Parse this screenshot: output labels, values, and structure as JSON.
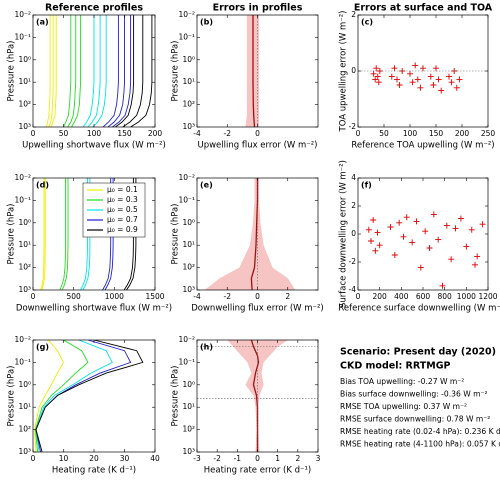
{
  "chart_data": [
    {
      "type": "line",
      "label": "(a)",
      "title": "Reference profiles",
      "xlabel": "Upwelling shortwave flux (W m⁻²)",
      "ylabel": "Pressure (hPa)",
      "xlim": [
        0,
        200
      ],
      "xticks": [
        0,
        50,
        100,
        150,
        200
      ],
      "ylog": true,
      "ylim": [
        1000,
        0.01
      ],
      "yticks": [
        {
          "value": 0.01,
          "label": "10⁻²"
        },
        {
          "value": 0.1,
          "label": "10⁻¹"
        },
        {
          "value": 1,
          "label": "10⁰"
        },
        {
          "value": 10,
          "label": "10¹"
        },
        {
          "value": 100,
          "label": "10²"
        },
        {
          "value": 1000,
          "label": "10³"
        }
      ],
      "pressure": [
        0.01,
        0.1,
        1,
        10,
        30,
        100,
        300,
        600,
        1000
      ],
      "series": [
        {
          "color": "#eeee00",
          "profiles": [
            [
              28,
              28,
              28,
              28,
              28,
              27,
              26,
              24,
              22
            ],
            [
              33,
              33,
              33,
              33,
              33,
              32,
              31,
              29,
              26
            ],
            [
              38,
              38,
              38,
              38,
              38,
              37,
              36,
              33,
              30
            ]
          ]
        },
        {
          "color": "#22dd22",
          "profiles": [
            [
              62,
              62,
              62,
              62,
              61,
              60,
              58,
              54,
              50
            ],
            [
              70,
              70,
              70,
              70,
              69,
              68,
              66,
              62,
              57
            ],
            [
              78,
              78,
              78,
              78,
              77,
              76,
              73,
              68,
              63
            ]
          ]
        },
        {
          "color": "#00e5e5",
          "profiles": [
            [
              100,
              100,
              100,
              100,
              99,
              97,
              94,
              88,
              82
            ],
            [
              110,
              110,
              110,
              110,
              109,
              107,
              104,
              97,
              90
            ],
            [
              120,
              120,
              120,
              120,
              119,
              117,
              113,
              106,
              98
            ]
          ]
        },
        {
          "color": "#1f1fd0",
          "profiles": [
            [
              140,
              140,
              140,
              140,
              139,
              137,
              133,
              124,
              115
            ],
            [
              150,
              150,
              150,
              150,
              149,
              147,
              142,
              133,
              123
            ],
            [
              160,
              160,
              160,
              160,
              159,
              156,
              151,
              141,
              130
            ]
          ]
        },
        {
          "color": "#000000",
          "profiles": [
            [
              165,
              165,
              165,
              165,
              164,
              161,
              156,
              146,
              135
            ],
            [
              180,
              180,
              180,
              180,
              179,
              176,
              170,
              159,
              147
            ],
            [
              195,
              195,
              195,
              195,
              194,
              191,
              185,
              173,
              160
            ]
          ]
        }
      ]
    },
    {
      "type": "area",
      "label": "(b)",
      "title": "Errors in profiles",
      "xlabel": "Upwelling flux error (W m⁻²)",
      "ylabel": "Pressure (hPa)",
      "xlim": [
        -4,
        4
      ],
      "xticks": [
        -4,
        -2,
        0
      ],
      "ylog": true,
      "ylim": [
        1000,
        0.01
      ],
      "yticks": [
        {
          "value": 0.01,
          "label": "10⁻²"
        },
        {
          "value": 0.1,
          "label": "10⁻¹"
        },
        {
          "value": 1,
          "label": "10⁰"
        },
        {
          "value": 10,
          "label": "10¹"
        },
        {
          "value": 100,
          "label": "10²"
        },
        {
          "value": 1000,
          "label": "10³"
        }
      ],
      "vline": 0,
      "band_color": "#f7c4c4",
      "color": "#a01010",
      "pressure": [
        0.01,
        0.1,
        1,
        10,
        100,
        300,
        1000
      ],
      "min": [
        -0.7,
        -0.7,
        -0.7,
        -0.7,
        -0.7,
        -0.7,
        -0.8
      ],
      "max": [
        0.1,
        0.1,
        0.1,
        0.1,
        0.1,
        0.1,
        0.1
      ],
      "mean": [
        -0.3,
        -0.3,
        -0.3,
        -0.3,
        -0.28,
        -0.25,
        -0.2
      ]
    },
    {
      "type": "scatter",
      "label": "(c)",
      "title": "Errors at surface and TOA",
      "xlabel": "Reference TOA upwelling (W m⁻²)",
      "ylabel": "TOA upwelling error (W m⁻²)",
      "xlim": [
        0,
        250
      ],
      "xticks": [
        0,
        50,
        100,
        150,
        200,
        250
      ],
      "ylim": [
        -2,
        2
      ],
      "yticks": [
        -2,
        0,
        2
      ],
      "hlines": [
        0
      ],
      "color": "#e00000",
      "x": [
        30,
        33,
        35,
        38,
        40,
        42,
        65,
        70,
        75,
        80,
        85,
        100,
        105,
        110,
        115,
        120,
        125,
        140,
        145,
        150,
        155,
        160,
        175,
        180,
        185,
        190,
        195
      ],
      "y": [
        -0.1,
        -0.3,
        0.1,
        -0.2,
        -0.4,
        0,
        -0.2,
        0.1,
        -0.3,
        -0.5,
        0,
        -0.1,
        -0.4,
        0.2,
        -0.3,
        -0.6,
        0.1,
        -0.2,
        -0.5,
        0.1,
        -0.3,
        -0.7,
        -0.2,
        -0.4,
        0,
        -0.6,
        -0.3
      ]
    },
    {
      "type": "line",
      "label": "(d)",
      "xlabel": "Downwelling shortwave flux (W m⁻²)",
      "ylabel": "Pressure (hPa)",
      "xlim": [
        0,
        1500
      ],
      "xticks": [
        0,
        500,
        1000,
        1500
      ],
      "ylog": true,
      "ylim": [
        1000,
        0.01
      ],
      "yticks": [
        {
          "value": 0.01,
          "label": "10⁻²"
        },
        {
          "value": 0.1,
          "label": "10⁻¹"
        },
        {
          "value": 1,
          "label": "10⁰"
        },
        {
          "value": 10,
          "label": "10¹"
        },
        {
          "value": 100,
          "label": "10²"
        },
        {
          "value": 1000,
          "label": "10³"
        }
      ],
      "legend": "upper right",
      "pressure": [
        0.01,
        0.1,
        1,
        10,
        30,
        100,
        300,
        600,
        1000
      ],
      "series": [
        {
          "name": "μ₀ = 0.1",
          "color": "#eeee00",
          "profiles": [
            [
              150,
              150,
              150,
              150,
              149,
              147,
              140,
              125,
              110
            ],
            [
              135,
              135,
              135,
              135,
              134,
              132,
              126,
              112,
              95
            ]
          ]
        },
        {
          "name": "μ₀ = 0.3",
          "color": "#22dd22",
          "profiles": [
            [
              430,
              430,
              430,
              430,
              428,
              424,
              410,
              385,
              360
            ],
            [
              400,
              400,
              400,
              400,
              398,
              394,
              380,
              355,
              330
            ]
          ]
        },
        {
          "name": "μ₀ = 0.5",
          "color": "#00e5e5",
          "profiles": [
            [
              700,
              700,
              700,
              700,
              698,
              692,
              675,
              645,
              615
            ],
            [
              670,
              670,
              670,
              670,
              668,
              662,
              645,
              615,
              585
            ]
          ]
        },
        {
          "name": "μ₀ = 0.7",
          "color": "#1f1fd0",
          "profiles": [
            [
              985,
              985,
              985,
              985,
              982,
              975,
              955,
              920,
              885
            ],
            [
              955,
              955,
              955,
              955,
              952,
              945,
              925,
              890,
              855
            ]
          ]
        },
        {
          "name": "μ₀ = 0.9",
          "color": "#000000",
          "profiles": [
            [
              1265,
              1265,
              1265,
              1265,
              1262,
              1253,
              1230,
              1190,
              1150
            ],
            [
              1235,
              1235,
              1235,
              1235,
              1232,
              1223,
              1200,
              1160,
              1120
            ]
          ]
        }
      ]
    },
    {
      "type": "area",
      "label": "(e)",
      "xlabel": "Downwelling flux error (W m⁻²)",
      "ylabel": "Pressure (hPa)",
      "xlim": [
        -4,
        4
      ],
      "xticks": [
        -4,
        -2,
        0,
        2
      ],
      "ylog": true,
      "ylim": [
        1000,
        0.01
      ],
      "yticks": [
        {
          "value": 0.01,
          "label": "10⁻²"
        },
        {
          "value": 0.1,
          "label": "10⁻¹"
        },
        {
          "value": 1,
          "label": "10⁰"
        },
        {
          "value": 10,
          "label": "10¹"
        },
        {
          "value": 100,
          "label": "10²"
        },
        {
          "value": 1000,
          "label": "10³"
        }
      ],
      "vline": 0,
      "band_color": "#f7c4c4",
      "color": "#a01010",
      "pressure": [
        0.01,
        0.1,
        1,
        10,
        100,
        300,
        1000
      ],
      "min": [
        -0.2,
        -0.2,
        -0.3,
        -0.5,
        -1.2,
        -2.5,
        -3.5
      ],
      "max": [
        0.1,
        0.1,
        0.2,
        0.4,
        1,
        2,
        2.5
      ],
      "mean": [
        0,
        0,
        -0.05,
        -0.1,
        -0.2,
        -0.4,
        -0.36
      ]
    },
    {
      "type": "scatter",
      "label": "(f)",
      "xlabel": "Reference surface downwelling (W m⁻²)",
      "ylabel": "Surface downwelling error (W m⁻²)",
      "xlim": [
        0,
        1200
      ],
      "xticks": [
        0,
        200,
        400,
        600,
        800,
        1000,
        1200
      ],
      "ylim": [
        -4,
        4
      ],
      "yticks": [
        -4,
        -2,
        0,
        2,
        4
      ],
      "color": "#e00000",
      "x": [
        100,
        120,
        140,
        160,
        180,
        200,
        300,
        340,
        380,
        420,
        450,
        500,
        540,
        580,
        620,
        660,
        700,
        740,
        780,
        820,
        860,
        900,
        950,
        1000,
        1050,
        1100,
        1150,
        1080
      ],
      "y": [
        0.3,
        -0.5,
        1.0,
        -1.2,
        0.1,
        -0.8,
        0.5,
        -1.5,
        0.8,
        -0.2,
        1.2,
        -0.6,
        0.9,
        -2.4,
        0.2,
        -1.0,
        1.4,
        -0.4,
        -3.7,
        0.6,
        -1.8,
        0.4,
        1.1,
        -0.9,
        0.3,
        -1.6,
        0.7,
        -2.2
      ]
    },
    {
      "type": "line",
      "label": "(g)",
      "xlabel": "Heating rate (K d⁻¹)",
      "ylabel": "Pressure (hPa)",
      "xlim": [
        0,
        40
      ],
      "xticks": [
        0,
        10,
        20,
        30,
        40
      ],
      "ylog": true,
      "ylim": [
        1000,
        0.01
      ],
      "yticks": [
        {
          "value": 0.01,
          "label": "10⁻²"
        },
        {
          "value": 0.1,
          "label": "10⁻¹"
        },
        {
          "value": 1,
          "label": "10⁰"
        },
        {
          "value": 10,
          "label": "10¹"
        },
        {
          "value": 100,
          "label": "10²"
        },
        {
          "value": 1000,
          "label": "10³"
        }
      ],
      "pressure": [
        0.01,
        0.03,
        0.1,
        0.3,
        1,
        3,
        10,
        100,
        1000
      ],
      "series": [
        {
          "color": "#eeee00",
          "profiles": [
            [
              5,
              8,
              10,
              8,
              6,
              4,
              2,
              0.5,
              1
            ]
          ]
        },
        {
          "color": "#22dd22",
          "profiles": [
            [
              10,
              16,
              18,
              14,
              10,
              6,
              3,
              0.8,
              1.5
            ]
          ]
        },
        {
          "color": "#00e5e5",
          "profiles": [
            [
              15,
              24,
              26,
              19,
              13,
              7,
              3.5,
              1,
              2
            ]
          ]
        },
        {
          "color": "#1f1fd0",
          "profiles": [
            [
              18,
              30,
              32,
              22,
              14,
              8,
              4,
              1,
              2.5
            ]
          ]
        },
        {
          "color": "#000000",
          "profiles": [
            [
              20,
              34,
              36,
              24,
              15,
              8,
              4,
              1,
              3
            ]
          ]
        }
      ]
    },
    {
      "type": "area",
      "label": "(h)",
      "xlabel": "Heating rate error (K d⁻¹)",
      "ylabel": "Pressure (hPa)",
      "xlim": [
        -3,
        3
      ],
      "xticks": [
        -3,
        -2,
        -1,
        0,
        1,
        2,
        3
      ],
      "ylog": true,
      "ylim": [
        1000,
        0.01
      ],
      "yticks": [
        {
          "value": 0.01,
          "label": "10⁻²"
        },
        {
          "value": 0.1,
          "label": "10⁻¹"
        },
        {
          "value": 1,
          "label": "10⁰"
        },
        {
          "value": 10,
          "label": "10¹"
        },
        {
          "value": 100,
          "label": "10²"
        },
        {
          "value": 1000,
          "label": "10³"
        }
      ],
      "vline": 0,
      "hlines": [
        0.02,
        4
      ],
      "band_color": "#f7c4c4",
      "color": "#a01010",
      "pressure": [
        0.01,
        0.02,
        0.05,
        0.1,
        0.3,
        1,
        3,
        10,
        100,
        1000
      ],
      "min": [
        -1.5,
        -1.2,
        -0.8,
        -0.5,
        -0.3,
        -0.6,
        -0.2,
        -0.1,
        -0.05,
        -0.1
      ],
      "max": [
        1.5,
        1.0,
        0.6,
        0.3,
        0.2,
        0.3,
        0.1,
        0.05,
        0.05,
        0.1
      ],
      "mean": [
        -0.3,
        -0.2,
        0,
        0.05,
        -0.1,
        -0.2,
        -0.05,
        0,
        0,
        0
      ]
    }
  ],
  "summary": {
    "title": "Scenario: Present day (2020)",
    "subtitle": "CKD model: RRTMGP",
    "lines": [
      "Bias TOA upwelling: -0.27 W m⁻²",
      "Bias surface downwelling: -0.36 W m⁻²",
      "RMSE TOA upwelling: 0.37 W m⁻²",
      "RMSE surface downwelling: 0.78 W m⁻²",
      "RMSE heating rate (0.02-4 hPa): 0.236 K d⁻¹",
      "RMSE heating rate (4-1100 hPa): 0.057 K d⁻¹"
    ]
  }
}
